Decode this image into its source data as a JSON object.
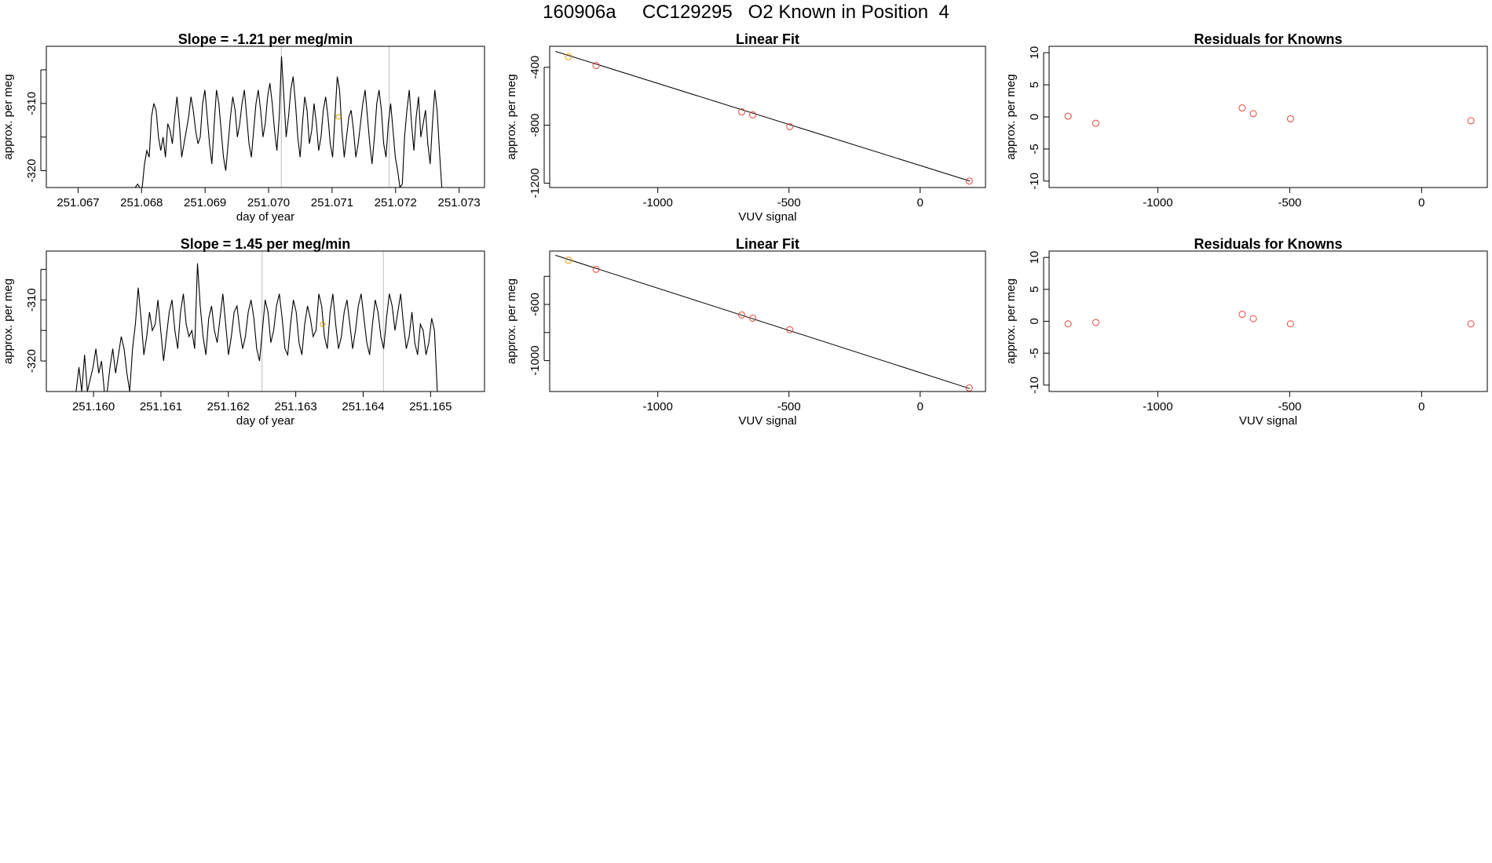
{
  "title": "160906a     CC129295   O2 Known in Position  4",
  "colors": {
    "line": "#000000",
    "known_point": "#e69f00",
    "fit_point": "#e8453c",
    "residual_point": "#e8453c",
    "vline": "#bebebe",
    "frame": "#000000"
  },
  "chart_data": [
    {
      "id": "ts1",
      "type": "line",
      "title": "Slope =  -1.21  per meg/min",
      "xlabel": "day of year",
      "ylabel": "approx. per meg",
      "xlim": [
        251.0665,
        251.0734
      ],
      "ylim": [
        -322.5,
        -301.5
      ],
      "xticks": [
        251.067,
        251.068,
        251.069,
        251.07,
        251.071,
        251.072,
        251.073
      ],
      "xtick_labels": [
        "251.067",
        "251.068",
        "251.069",
        "251.070",
        "251.071",
        "251.072",
        "251.073"
      ],
      "yticks": [
        -320,
        -315,
        -310,
        -305
      ],
      "ytick_labels": [
        "-320",
        "",
        "-310",
        ""
      ],
      "vlines": [
        251.0702,
        251.0719
      ],
      "series": {
        "name": "signal",
        "x_start": 251.0679,
        "x_end": 251.0728,
        "values": [
          -322.5,
          -322,
          -322.5,
          -322.5,
          -319,
          -317,
          -318,
          -312,
          -310,
          -311,
          -315,
          -317,
          -315,
          -318,
          -313,
          -314,
          -316,
          -312,
          -309,
          -313,
          -318,
          -316,
          -314,
          -312,
          -309,
          -311,
          -314,
          -316,
          -315,
          -310,
          -308,
          -312,
          -316,
          -319,
          -313,
          -308,
          -310,
          -314,
          -318,
          -320,
          -316,
          -312,
          -309,
          -311,
          -315,
          -313,
          -310,
          -308,
          -312,
          -316,
          -318,
          -314,
          -310,
          -308,
          -311,
          -315,
          -313,
          -309,
          -307,
          -310,
          -314,
          -317,
          -312,
          -303,
          -309,
          -315,
          -312,
          -308,
          -306,
          -310,
          -315,
          -318,
          -313,
          -309,
          -311,
          -316,
          -314,
          -310,
          -313,
          -317,
          -315,
          -311,
          -309,
          -312,
          -316,
          -318,
          -312,
          -306,
          -308,
          -314,
          -318,
          -315,
          -312,
          -311,
          -314,
          -318,
          -316,
          -313,
          -310,
          -308,
          -312,
          -316,
          -319,
          -315,
          -310,
          -308,
          -311,
          -316,
          -318,
          -313,
          -310,
          -314,
          -318,
          -320,
          -322.5,
          -322,
          -315,
          -311,
          -308,
          -313,
          -317,
          -312,
          -309,
          -315,
          -313,
          -311,
          -316,
          -319,
          -313,
          -308,
          -311,
          -317,
          -322.5,
          -322.5,
          -322.5
        ]
      },
      "marker": {
        "x": 251.0711,
        "y": -312
      }
    },
    {
      "id": "fit1",
      "type": "scatter",
      "title": "Linear Fit",
      "xlabel": "VUV signal",
      "ylabel": "approx. per meg",
      "xlim": [
        -1412,
        249
      ],
      "ylim": [
        -1230,
        -255
      ],
      "xticks": [
        -1000,
        -500,
        0
      ],
      "xtick_labels": [
        "-1000",
        "-500",
        "0"
      ],
      "yticks": [
        -1200,
        -800,
        -400
      ],
      "ytick_labels": [
        "-1200",
        "-800",
        "-400"
      ],
      "fit_line": {
        "x": [
          -1390,
          190
        ],
        "y": [
          -290,
          -1186
        ]
      },
      "points": [
        {
          "x": -1340,
          "y": -327,
          "known": true
        },
        {
          "x": -1235,
          "y": -388,
          "known": false
        },
        {
          "x": -680,
          "y": -708,
          "known": false
        },
        {
          "x": -638,
          "y": -728,
          "known": false
        },
        {
          "x": -497,
          "y": -810,
          "known": false
        },
        {
          "x": 187,
          "y": -1185,
          "known": false
        }
      ]
    },
    {
      "id": "res1",
      "type": "scatter",
      "title": "Residuals for Knowns",
      "xlabel": "",
      "ylabel": "approx. per meg",
      "xlim": [
        -1412,
        249
      ],
      "ylim": [
        -11,
        11
      ],
      "xticks": [
        -1000,
        -500,
        0
      ],
      "xtick_labels": [
        "-1000",
        "-500",
        "0"
      ],
      "yticks": [
        -10,
        -5,
        0,
        5,
        10
      ],
      "ytick_labels": [
        "-10",
        "-5",
        "0",
        "5",
        "10"
      ],
      "points": [
        {
          "x": -1340,
          "y": 0.1
        },
        {
          "x": -1235,
          "y": -1.0
        },
        {
          "x": -680,
          "y": 1.4
        },
        {
          "x": -638,
          "y": 0.5
        },
        {
          "x": -497,
          "y": -0.3
        },
        {
          "x": 187,
          "y": -0.6
        }
      ]
    },
    {
      "id": "ts2",
      "type": "line",
      "title": "Slope =  1.45  per meg/min",
      "xlabel": "day of year",
      "ylabel": "approx. per meg",
      "xlim": [
        251.1593,
        251.1658
      ],
      "ylim": [
        -325,
        -302
      ],
      "xticks": [
        251.16,
        251.161,
        251.162,
        251.163,
        251.164,
        251.165
      ],
      "xtick_labels": [
        "251.160",
        "251.161",
        "251.162",
        "251.163",
        "251.164",
        "251.165"
      ],
      "yticks": [
        -320,
        -315,
        -310,
        -305
      ],
      "ytick_labels": [
        "-320",
        "",
        "-310",
        ""
      ],
      "vlines": [
        251.1625,
        251.1643
      ],
      "series": {
        "name": "signal",
        "x_start": 251.1597,
        "x_end": 251.1651,
        "values": [
          -325,
          -325,
          -321,
          -325,
          -319,
          -325,
          -323,
          -321,
          -318,
          -322,
          -320,
          -325,
          -325,
          -321,
          -318,
          -322,
          -319,
          -316,
          -318,
          -322,
          -325,
          -318,
          -314,
          -308,
          -313,
          -319,
          -316,
          -312,
          -315,
          -314,
          -310,
          -315,
          -320,
          -316,
          -312,
          -310,
          -315,
          -318,
          -312,
          -309,
          -314,
          -316,
          -315,
          -318,
          -304,
          -311,
          -316,
          -319,
          -313,
          -311,
          -315,
          -317,
          -313,
          -309,
          -314,
          -319,
          -316,
          -312,
          -311,
          -315,
          -318,
          -316,
          -312,
          -310,
          -313,
          -318,
          -320,
          -315,
          -310,
          -312,
          -317,
          -315,
          -311,
          -309,
          -313,
          -318,
          -319,
          -314,
          -310,
          -312,
          -317,
          -319,
          -314,
          -311,
          -313,
          -316,
          -315,
          -309,
          -311,
          -316,
          -318,
          -312,
          -309,
          -314,
          -318,
          -316,
          -312,
          -310,
          -314,
          -318,
          -315,
          -311,
          -309,
          -313,
          -317,
          -319,
          -314,
          -310,
          -312,
          -316,
          -318,
          -313,
          -309,
          -311,
          -315,
          -312,
          -309,
          -314,
          -318,
          -316,
          -312,
          -317,
          -319,
          -314,
          -315,
          -319,
          -317,
          -313,
          -315,
          -325
        ]
      },
      "marker": {
        "x": 251.1634,
        "y": -314
      }
    },
    {
      "id": "fit2",
      "type": "scatter",
      "title": "Linear Fit",
      "xlabel": "VUV signal",
      "ylabel": "approx. per meg",
      "xlim": [
        -1412,
        249
      ],
      "ylim": [
        -1220,
        -220
      ],
      "xticks": [
        -1000,
        -500,
        0
      ],
      "xtick_labels": [
        "-1000",
        "-500",
        "0"
      ],
      "yticks": [
        -1000,
        -800,
        -600,
        -400
      ],
      "ytick_labels": [
        "-1000",
        "",
        "-600",
        ""
      ],
      "fit_line": {
        "x": [
          -1390,
          190
        ],
        "y": [
          -250,
          -1200
        ]
      },
      "points": [
        {
          "x": -1340,
          "y": -285,
          "known": true
        },
        {
          "x": -1235,
          "y": -350,
          "known": false
        },
        {
          "x": -680,
          "y": -675,
          "known": false
        },
        {
          "x": -638,
          "y": -698,
          "known": false
        },
        {
          "x": -497,
          "y": -780,
          "known": false
        },
        {
          "x": 187,
          "y": -1195,
          "known": false
        }
      ]
    },
    {
      "id": "res2",
      "type": "scatter",
      "title": "Residuals for Knowns",
      "xlabel": "VUV signal",
      "ylabel": "approx. per meg",
      "xlim": [
        -1412,
        249
      ],
      "ylim": [
        -11,
        11
      ],
      "xticks": [
        -1000,
        -500,
        0
      ],
      "xtick_labels": [
        "-1000",
        "-500",
        "0"
      ],
      "yticks": [
        -10,
        -5,
        0,
        5,
        10
      ],
      "ytick_labels": [
        "-10",
        "-5",
        "0",
        "5",
        "10"
      ],
      "points": [
        {
          "x": -1340,
          "y": -0.4
        },
        {
          "x": -1235,
          "y": -0.2
        },
        {
          "x": -680,
          "y": 1.1
        },
        {
          "x": -638,
          "y": 0.4
        },
        {
          "x": -497,
          "y": -0.4
        },
        {
          "x": 187,
          "y": -0.4
        }
      ]
    }
  ]
}
